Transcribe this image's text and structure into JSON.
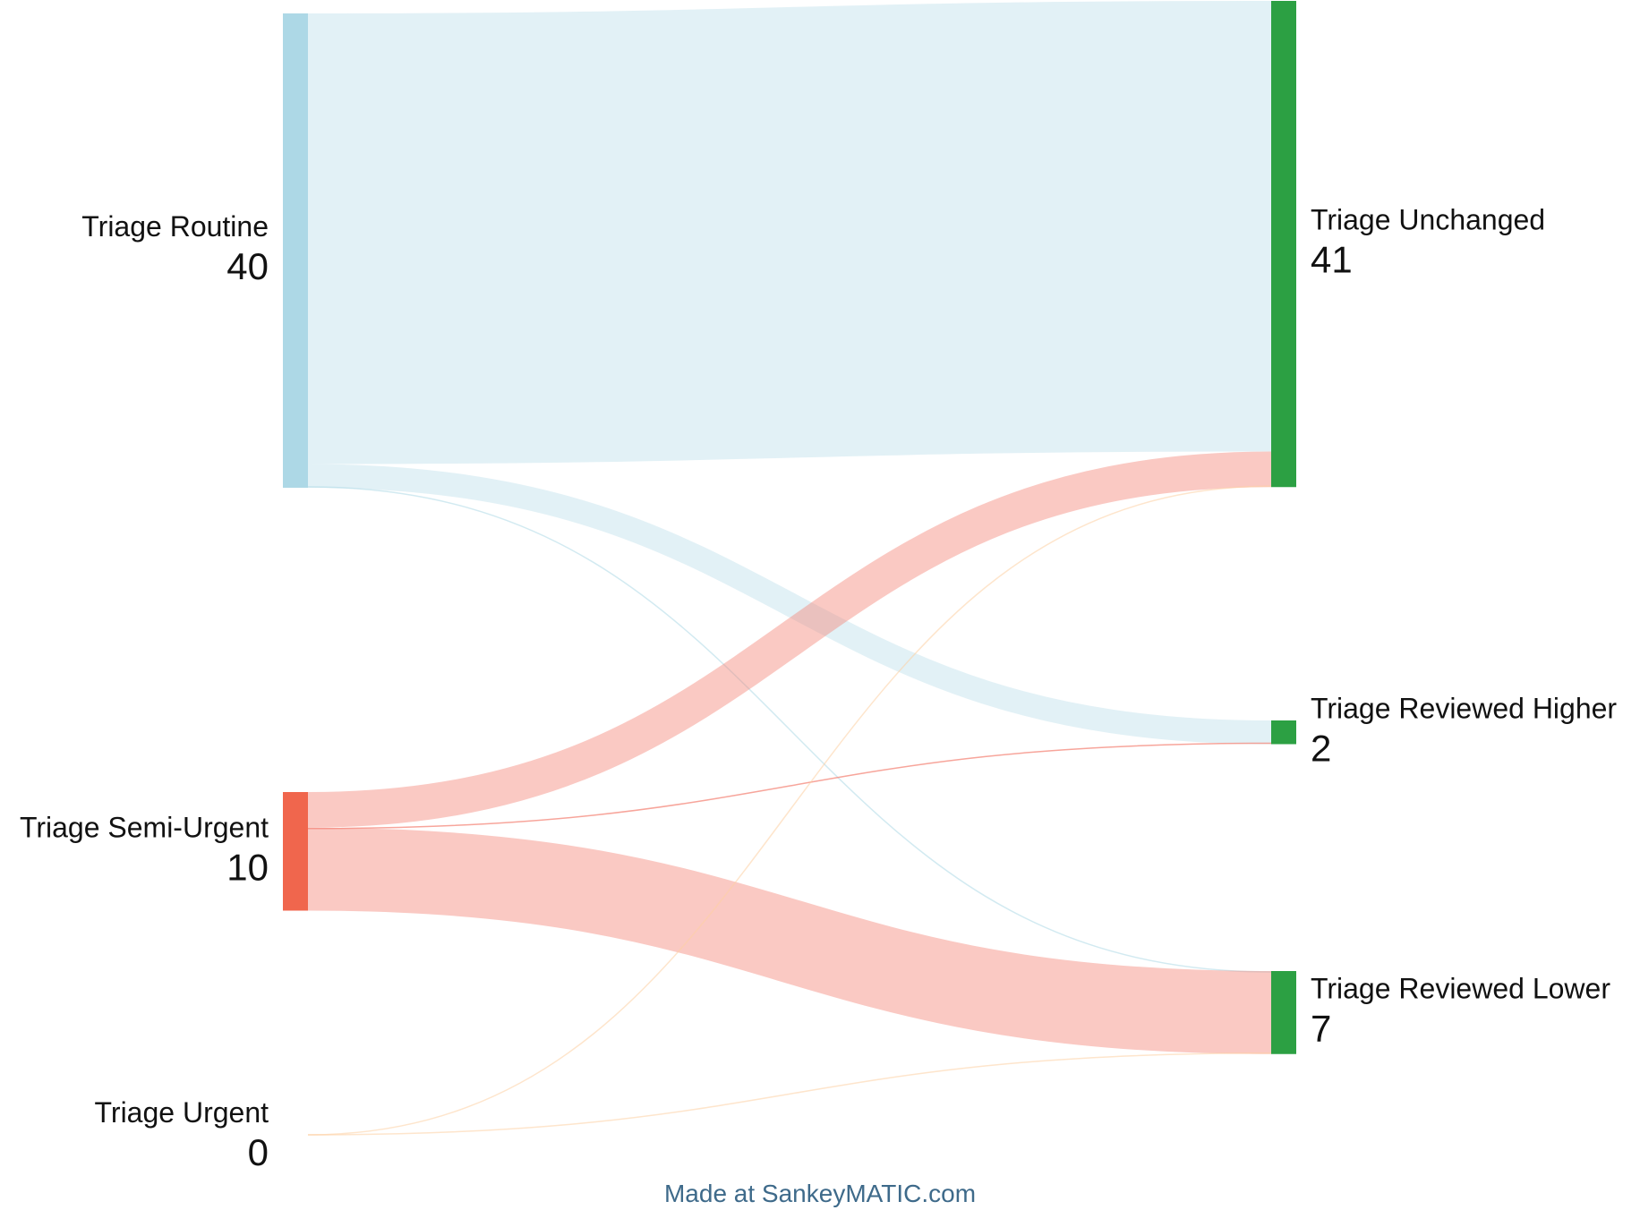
{
  "chart_data": {
    "type": "sankey",
    "colors": {
      "routine": "#add8e6",
      "semi_urgent": "#f0664d",
      "urgent": "#fdd0a2",
      "target": "#2ca043",
      "credit": "#3e6a8a"
    },
    "nodes": [
      {
        "id": "routine",
        "label": "Triage Routine",
        "value": "40",
        "column": "source"
      },
      {
        "id": "semi",
        "label": "Triage Semi-Urgent",
        "value": "10",
        "column": "source"
      },
      {
        "id": "urgent",
        "label": "Triage Urgent",
        "value": "0",
        "column": "source"
      },
      {
        "id": "unchanged",
        "label": "Triage Unchanged",
        "value": "41",
        "column": "target"
      },
      {
        "id": "higher",
        "label": "Triage Reviewed Higher",
        "value": "2",
        "column": "target"
      },
      {
        "id": "lower",
        "label": "Triage Reviewed Lower",
        "value": "7",
        "column": "target"
      }
    ],
    "links": [
      {
        "source": "routine",
        "target": "unchanged",
        "value": 38
      },
      {
        "source": "routine",
        "target": "higher",
        "value": 2
      },
      {
        "source": "routine",
        "target": "lower",
        "value": 0
      },
      {
        "source": "semi",
        "target": "unchanged",
        "value": 3
      },
      {
        "source": "semi",
        "target": "higher",
        "value": 0
      },
      {
        "source": "semi",
        "target": "lower",
        "value": 7
      },
      {
        "source": "urgent",
        "target": "unchanged",
        "value": 0
      },
      {
        "source": "urgent",
        "target": "lower",
        "value": 0
      }
    ]
  },
  "footer": {
    "credit": "Made at SankeyMATIC.com"
  }
}
